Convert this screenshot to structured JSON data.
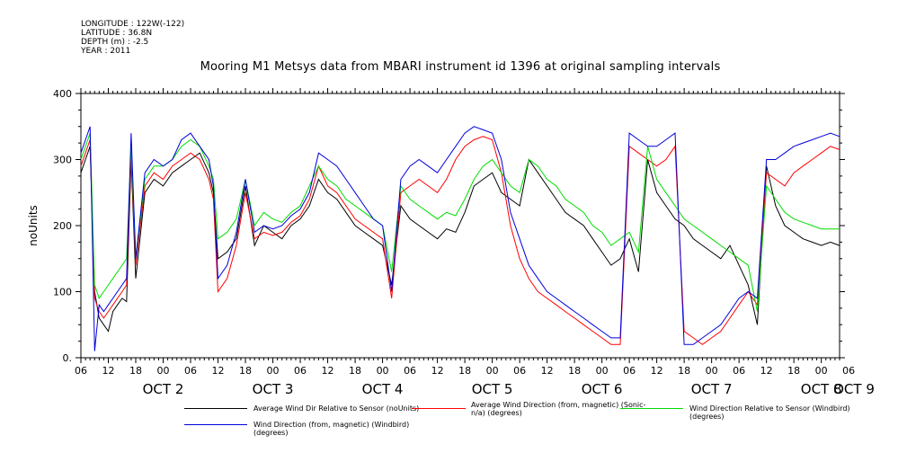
{
  "meta": {
    "longitude": "LONGITUDE : 122W(-122)",
    "latitude": "LATITUDE : 36.8N",
    "depth": "DEPTH (m) : -2.5",
    "year": "YEAR : 2011"
  },
  "chart_data": {
    "type": "line",
    "title": "Mooring M1 Metsys data from MBARI instrument id 1396 at original sampling intervals",
    "ylabel": "noUnits",
    "xlabel": "",
    "ylim": [
      0,
      400
    ],
    "yticks": [
      0,
      100,
      200,
      300,
      400
    ],
    "ytick_labels": [
      "0.",
      "100",
      "200",
      "300",
      "400"
    ],
    "xlim_hours": [
      0,
      166
    ],
    "xtick_labels": [
      "06",
      "12",
      "18",
      "00",
      "06",
      "12",
      "18",
      "00",
      "06",
      "12",
      "18",
      "00",
      "06",
      "12",
      "18",
      "00",
      "06",
      "12",
      "18",
      "00",
      "06",
      "12",
      "18",
      "00",
      "06",
      "12",
      "18",
      "00",
      "06"
    ],
    "day_labels": [
      "OCT  2",
      "OCT  3",
      "OCT  4",
      "OCT  5",
      "OCT  6",
      "OCT  7",
      "OCT  8",
      "OCT  9"
    ],
    "grid": false,
    "legend_position": "bottom",
    "series": [
      {
        "name": "Average Wind Dir Relative to Sensor (noUnits)",
        "color": "#000000",
        "x": [
          0,
          1,
          2,
          3,
          4,
          5,
          6,
          7,
          8,
          9,
          10,
          11,
          12,
          14,
          16,
          18,
          20,
          22,
          24,
          26,
          28,
          29,
          30,
          32,
          34,
          36,
          38,
          40,
          42,
          44,
          46,
          48,
          50,
          52,
          54,
          56,
          58,
          60,
          62,
          64,
          66,
          68,
          70,
          72,
          74,
          76,
          78,
          80,
          82,
          84,
          86,
          88,
          90,
          92,
          94,
          96,
          98,
          100,
          102,
          104,
          106,
          108,
          110,
          112,
          114,
          116,
          118,
          120,
          122,
          124,
          126,
          128,
          130,
          132,
          134,
          136,
          138,
          140,
          142,
          144,
          146,
          148,
          150,
          152,
          154,
          156,
          158,
          160,
          162,
          164,
          166
        ],
        "values": [
          280,
          300,
          320,
          100,
          60,
          50,
          40,
          70,
          80,
          90,
          85,
          300,
          120,
          250,
          270,
          260,
          280,
          290,
          300,
          310,
          280,
          250,
          150,
          160,
          180,
          260,
          170,
          200,
          190,
          180,
          200,
          210,
          230,
          270,
          250,
          240,
          220,
          200,
          190,
          180,
          170,
          110,
          230,
          210,
          200,
          190,
          180,
          195,
          190,
          220,
          260,
          270,
          280,
          250,
          240,
          230,
          300,
          280,
          260,
          240,
          220,
          210,
          200,
          180,
          160,
          140,
          150,
          180,
          130,
          300,
          250,
          230,
          210,
          200,
          180,
          170,
          160,
          150,
          170,
          140,
          110,
          50,
          290,
          230,
          200,
          190,
          180,
          175,
          170,
          175,
          170
        ]
      },
      {
        "name": "Average Wind Direction (from, magnetic) (Sonic-n/a) (degrees)",
        "color": "#ff0000",
        "x": [
          0,
          1,
          2,
          3,
          4,
          5,
          6,
          7,
          8,
          9,
          10,
          11,
          12,
          14,
          16,
          18,
          20,
          22,
          24,
          26,
          28,
          29,
          30,
          32,
          34,
          36,
          38,
          40,
          42,
          44,
          46,
          48,
          50,
          52,
          54,
          56,
          58,
          60,
          62,
          64,
          66,
          68,
          70,
          72,
          74,
          76,
          78,
          80,
          82,
          84,
          86,
          88,
          90,
          92,
          94,
          96,
          98,
          100,
          102,
          104,
          106,
          108,
          110,
          112,
          114,
          116,
          118,
          120,
          122,
          124,
          126,
          128,
          130,
          132,
          134,
          136,
          138,
          140,
          142,
          144,
          146,
          148,
          150,
          152,
          154,
          156,
          158,
          160,
          162,
          164,
          166
        ],
        "values": [
          290,
          310,
          330,
          90,
          70,
          60,
          70,
          80,
          90,
          100,
          110,
          310,
          140,
          260,
          280,
          270,
          290,
          300,
          310,
          300,
          270,
          240,
          100,
          120,
          170,
          250,
          180,
          190,
          185,
          190,
          205,
          215,
          240,
          290,
          260,
          250,
          230,
          210,
          200,
          190,
          180,
          90,
          250,
          260,
          270,
          260,
          250,
          270,
          300,
          320,
          330,
          335,
          330,
          280,
          200,
          150,
          120,
          100,
          90,
          80,
          70,
          60,
          50,
          40,
          30,
          20,
          20,
          320,
          310,
          300,
          290,
          300,
          320,
          40,
          30,
          20,
          30,
          40,
          60,
          80,
          100,
          80,
          280,
          270,
          260,
          280,
          290,
          300,
          310,
          320,
          315
        ]
      },
      {
        "name": "Wind Direction Relative to Sensor (Windbird) (degrees)",
        "color": "#00dd00",
        "x": [
          0,
          1,
          2,
          3,
          4,
          5,
          6,
          7,
          8,
          9,
          10,
          11,
          12,
          14,
          16,
          18,
          20,
          22,
          24,
          26,
          28,
          29,
          30,
          32,
          34,
          36,
          38,
          40,
          42,
          44,
          46,
          48,
          50,
          52,
          54,
          56,
          58,
          60,
          62,
          64,
          66,
          68,
          70,
          72,
          74,
          76,
          78,
          80,
          82,
          84,
          86,
          88,
          90,
          92,
          94,
          96,
          98,
          100,
          102,
          104,
          106,
          108,
          110,
          112,
          114,
          116,
          118,
          120,
          122,
          124,
          126,
          128,
          130,
          132,
          134,
          136,
          138,
          140,
          142,
          144,
          146,
          148,
          150,
          152,
          154,
          156,
          158,
          160,
          162,
          164,
          166
        ],
        "values": [
          300,
          320,
          340,
          110,
          90,
          100,
          110,
          120,
          130,
          140,
          150,
          320,
          150,
          270,
          290,
          290,
          300,
          320,
          330,
          320,
          290,
          270,
          180,
          190,
          210,
          270,
          200,
          220,
          210,
          205,
          220,
          230,
          260,
          290,
          270,
          260,
          240,
          230,
          220,
          210,
          200,
          130,
          260,
          240,
          230,
          220,
          210,
          220,
          215,
          240,
          270,
          290,
          300,
          280,
          260,
          250,
          300,
          290,
          270,
          260,
          240,
          230,
          220,
          200,
          190,
          170,
          180,
          190,
          160,
          320,
          270,
          250,
          230,
          210,
          200,
          190,
          180,
          170,
          160,
          150,
          140,
          70,
          260,
          240,
          220,
          210,
          205,
          200,
          195,
          195,
          195
        ]
      },
      {
        "name": "Wind Direction (from, magnetic) (Windbird) (degrees)",
        "color": "#0000dd",
        "x": [
          0,
          1,
          2,
          3,
          4,
          5,
          6,
          7,
          8,
          9,
          10,
          11,
          12,
          14,
          16,
          18,
          20,
          22,
          24,
          26,
          28,
          29,
          30,
          32,
          34,
          36,
          38,
          40,
          42,
          44,
          46,
          48,
          50,
          52,
          54,
          56,
          58,
          60,
          62,
          64,
          66,
          68,
          70,
          72,
          74,
          76,
          78,
          80,
          82,
          84,
          86,
          88,
          90,
          92,
          94,
          96,
          98,
          100,
          102,
          104,
          106,
          108,
          110,
          112,
          114,
          116,
          118,
          120,
          122,
          124,
          126,
          128,
          130,
          132,
          134,
          136,
          138,
          140,
          142,
          144,
          146,
          148,
          150,
          152,
          154,
          156,
          158,
          160,
          162,
          164,
          166
        ],
        "values": [
          310,
          330,
          350,
          10,
          80,
          70,
          80,
          90,
          100,
          110,
          120,
          340,
          150,
          280,
          300,
          290,
          300,
          330,
          340,
          320,
          300,
          260,
          120,
          140,
          190,
          270,
          190,
          200,
          195,
          200,
          215,
          225,
          250,
          310,
          300,
          290,
          270,
          250,
          230,
          210,
          200,
          100,
          270,
          290,
          300,
          290,
          280,
          300,
          320,
          340,
          350,
          345,
          340,
          300,
          220,
          180,
          140,
          120,
          100,
          90,
          80,
          70,
          60,
          50,
          40,
          30,
          30,
          340,
          330,
          320,
          320,
          330,
          340,
          20,
          20,
          30,
          40,
          50,
          70,
          90,
          100,
          90,
          300,
          300,
          310,
          320,
          325,
          330,
          335,
          340,
          335
        ]
      }
    ]
  }
}
